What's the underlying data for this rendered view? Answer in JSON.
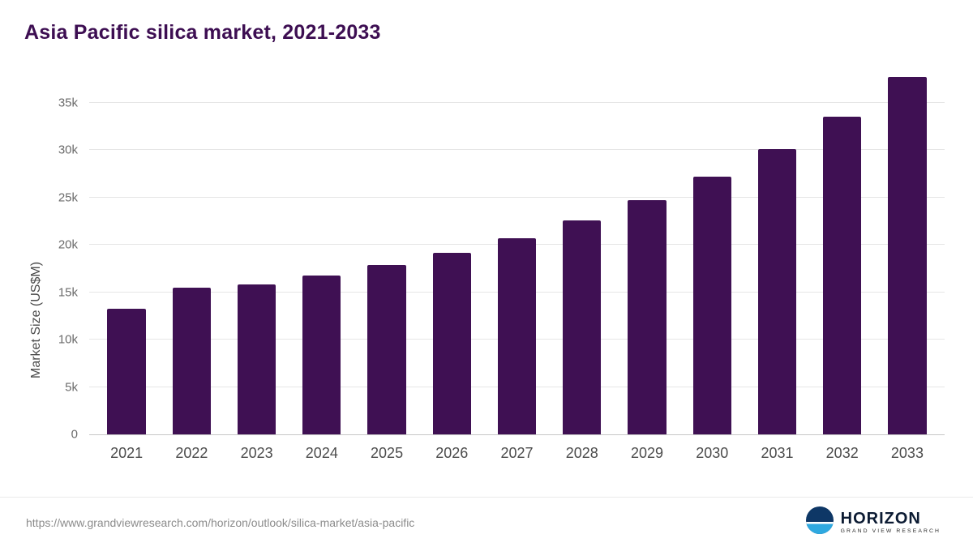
{
  "chart_data": {
    "type": "bar",
    "title": "Asia Pacific silica market, 2021-2033",
    "ylabel": "Market Size (US$M)",
    "categories": [
      "2021",
      "2022",
      "2023",
      "2024",
      "2025",
      "2026",
      "2027",
      "2028",
      "2029",
      "2030",
      "2031",
      "2032",
      "2033"
    ],
    "values": [
      13300,
      15500,
      15800,
      16800,
      17900,
      19200,
      20700,
      22600,
      24700,
      27200,
      30100,
      33500,
      37700
    ],
    "yticks": [
      0,
      5000,
      10000,
      15000,
      20000,
      25000,
      30000,
      35000
    ],
    "ytick_labels": [
      "0",
      "5k",
      "10k",
      "15k",
      "20k",
      "25k",
      "30k",
      "35k"
    ],
    "ylim": [
      0,
      38500
    ],
    "bar_color": "#3f1053",
    "grid": true,
    "legend": false
  },
  "footer": {
    "source_url": "https://www.grandviewresearch.com/horizon/outlook/silica-market/asia-pacific",
    "logo": {
      "name": "HORIZON",
      "subtitle": "GRAND VIEW RESEARCH"
    }
  }
}
